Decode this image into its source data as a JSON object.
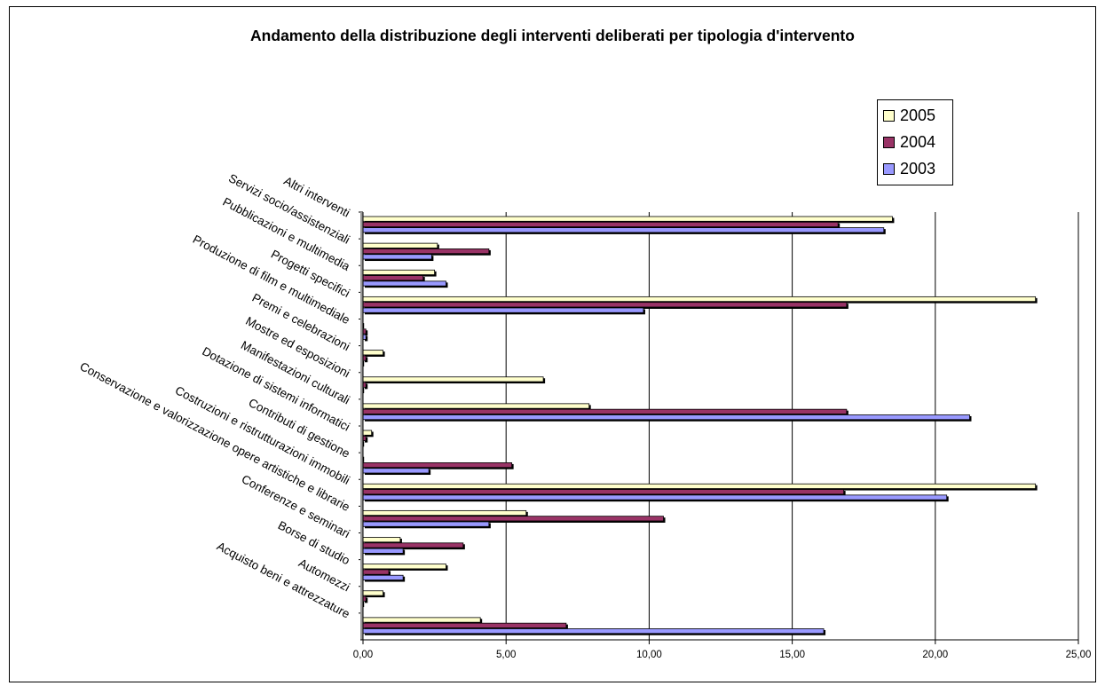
{
  "chart_data": {
    "type": "bar",
    "orientation": "horizontal",
    "title": "Andamento della distribuzione degli interventi deliberati per tipologia d'intervento",
    "categories": [
      "Altri interventi",
      "Servizi socio/assistenziali",
      "Pubblicazioni e multimedia",
      "Progetti specifici",
      "Produzione di film e multimediale",
      "Premi e celebrazioni",
      "Mostre ed esposizioni",
      "Manifestazioni culturali",
      "Dotazione di sistemi informatici",
      "Contributi di gestione",
      "Costruzioni e ristrutturazioni immobili",
      "Conservazione e valorizzazione opere artistiche e librarie",
      "Conferenze e seminari",
      "Borse di studio",
      "Automezzi",
      "Acquisto beni e attrezzature"
    ],
    "series": [
      {
        "name": "2005",
        "color": "#FFFFCC",
        "values": [
          18.5,
          2.6,
          2.5,
          23.5,
          0.0,
          0.7,
          6.3,
          7.9,
          0.3,
          0.0,
          23.5,
          5.7,
          1.3,
          2.9,
          0.7,
          4.1
        ]
      },
      {
        "name": "2004",
        "color": "#993366",
        "values": [
          16.6,
          4.4,
          2.1,
          16.9,
          0.1,
          0.1,
          0.1,
          16.9,
          0.1,
          5.2,
          16.8,
          10.5,
          3.5,
          0.9,
          0.1,
          7.1
        ]
      },
      {
        "name": "2003",
        "color": "#9999FF",
        "values": [
          18.2,
          2.4,
          2.9,
          9.8,
          0.1,
          0.0,
          0.0,
          21.2,
          0.0,
          2.3,
          20.4,
          4.4,
          1.4,
          1.4,
          0.0,
          16.1
        ]
      }
    ],
    "xlim": [
      0,
      25
    ],
    "xticks": [
      "0,00",
      "5,00",
      "10,00",
      "15,00",
      "20,00",
      "25,00"
    ],
    "xtick_values": [
      0,
      5,
      10,
      15,
      20,
      25
    ],
    "grid": "vertical major gridlines",
    "legend": {
      "placement": "top-right",
      "entries": [
        "2005",
        "2004",
        "2003"
      ]
    }
  }
}
